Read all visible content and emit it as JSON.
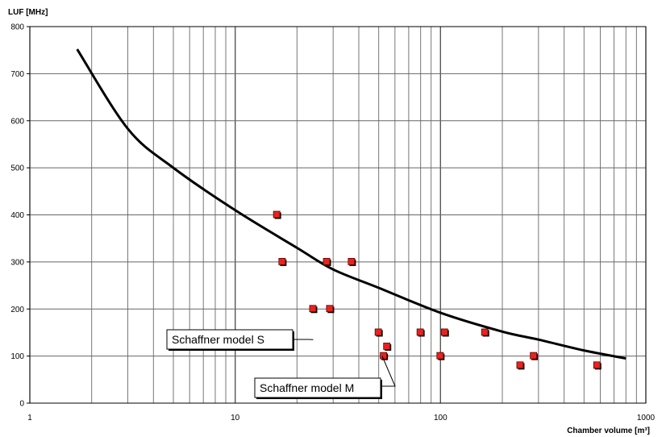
{
  "chart_data": {
    "type": "scatter",
    "ylabel": "LUF [MHz]",
    "xlabel": "Chamber volume [m³]",
    "xscale": "log",
    "xlim": [
      1,
      1000
    ],
    "ylim": [
      0,
      800
    ],
    "grid": true,
    "x_tick_labels": [
      "1",
      "10",
      "100",
      "1000"
    ],
    "y_tick_labels": [
      "0",
      "100",
      "200",
      "300",
      "400",
      "500",
      "600",
      "700",
      "800"
    ],
    "curve": {
      "x": [
        1.7,
        3,
        5,
        10,
        20,
        30,
        50,
        100,
        200,
        300,
        500,
        800
      ],
      "y": [
        752,
        583,
        500,
        410,
        330,
        284,
        245,
        192,
        152,
        135,
        112,
        95
      ]
    },
    "points": {
      "x": [
        16,
        17,
        28,
        37,
        24,
        29,
        50,
        55,
        53,
        80,
        105,
        100,
        165,
        245,
        285,
        580
      ],
      "y": [
        400,
        300,
        300,
        300,
        200,
        200,
        150,
        120,
        100,
        150,
        150,
        100,
        150,
        80,
        100,
        80
      ],
      "color": "#e8231f"
    },
    "annotations": [
      {
        "text": "Schaffner model S",
        "x": 24,
        "y": 135
      },
      {
        "text": "Schaffner model M",
        "x": 52,
        "y": 100
      }
    ]
  }
}
